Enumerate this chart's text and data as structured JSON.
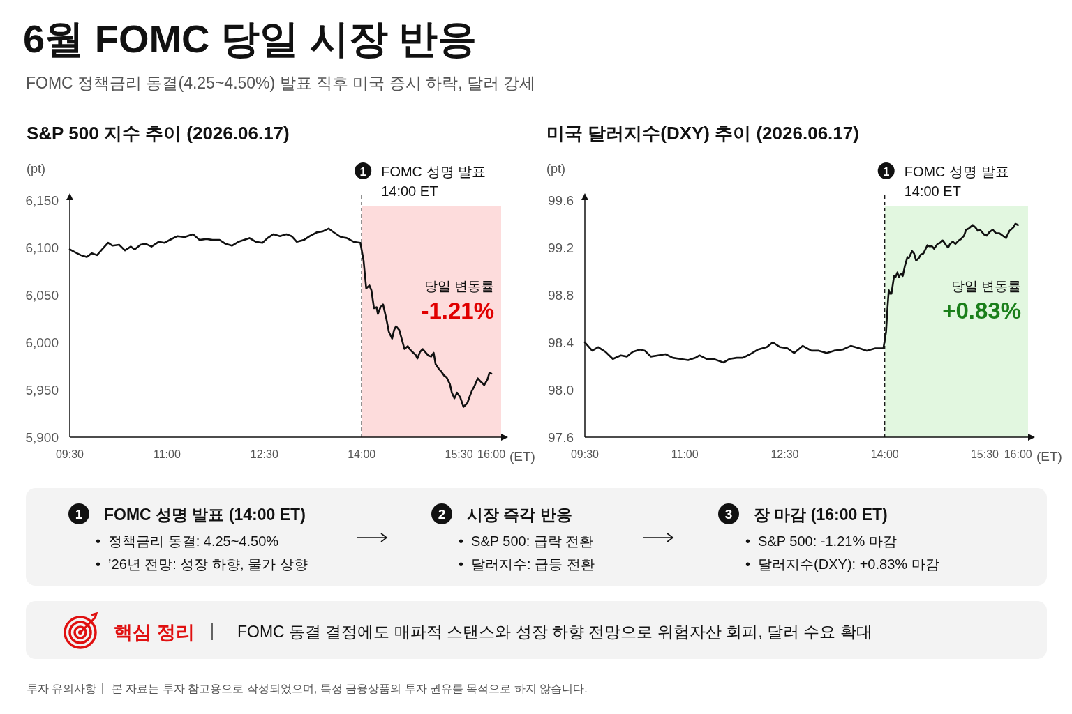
{
  "chart_data": [
    {
      "type": "line",
      "title": "S&P 500 지수 추이 (2026.06.17)",
      "ylabel": "(pt)",
      "xlabel": "(ET)",
      "x": [
        9.5,
        9.61,
        9.67,
        9.76,
        9.84,
        9.92,
        10.01,
        10.09,
        10.16,
        10.26,
        10.35,
        10.44,
        10.5,
        10.59,
        10.67,
        10.76,
        10.87,
        10.96,
        11.07,
        11.16,
        11.27,
        11.4,
        11.5,
        11.61,
        11.7,
        11.81,
        11.9,
        12.0,
        12.1,
        12.27,
        12.37,
        12.47,
        12.55,
        12.64,
        12.74,
        12.84,
        12.92,
        13.0,
        13.11,
        13.2,
        13.31,
        13.4,
        13.49,
        13.57,
        13.68,
        13.77,
        13.88,
        13.98,
        14.03,
        14.07,
        14.12,
        14.15,
        14.19,
        14.23,
        14.25,
        14.29,
        14.33,
        14.38,
        14.42,
        14.47,
        14.5,
        14.53,
        14.58,
        14.62,
        14.66,
        14.71,
        14.74,
        14.78,
        14.83,
        14.86,
        14.9,
        14.94,
        14.99,
        15.03,
        15.07,
        15.11,
        15.14,
        15.19,
        15.23,
        15.27,
        15.31,
        15.36,
        15.39,
        15.43,
        15.47,
        15.52,
        15.57,
        15.63,
        15.66,
        15.7,
        15.74,
        15.79,
        15.83,
        15.89,
        15.94,
        15.97,
        16.0
      ],
      "series": [
        {
          "color": "#111111",
          "values": [
            6098,
            6094,
            6092,
            6090,
            6094,
            6092,
            6099,
            6105,
            6102,
            6103,
            6097,
            6101,
            6098,
            6103,
            6104,
            6101,
            6106,
            6105,
            6109,
            6112,
            6111,
            6114,
            6108,
            6109,
            6108,
            6108,
            6104,
            6102,
            6106,
            6110,
            6106,
            6105,
            6110,
            6114,
            6112,
            6114,
            6112,
            6106,
            6108,
            6112,
            6116,
            6117,
            6120,
            6116,
            6111,
            6110,
            6106,
            6105,
            6086,
            6057,
            6060,
            6055,
            6036,
            6037,
            6030,
            6037,
            6040,
            6025,
            6011,
            6004,
            6013,
            6017,
            6013,
            6003,
            5993,
            5996,
            5993,
            5990,
            5987,
            5983,
            5990,
            5993,
            5989,
            5986,
            5985,
            5989,
            5977,
            5972,
            5969,
            5965,
            5963,
            5956,
            5947,
            5941,
            5947,
            5942,
            5932,
            5936,
            5942,
            5949,
            5954,
            5962,
            5959,
            5955,
            5961,
            5968,
            5967
          ]
        }
      ],
      "xlim": [
        9.5,
        16.15
      ],
      "ylim": [
        5900,
        6150
      ],
      "xticks": [
        {
          "value": 9.5,
          "label": "09:30"
        },
        {
          "value": 11,
          "label": "11:00"
        },
        {
          "value": 12.5,
          "label": "12:30"
        },
        {
          "value": 14,
          "label": "14:00"
        },
        {
          "value": 15.5,
          "label": "15:30"
        },
        {
          "value": 16,
          "label": "16:00"
        }
      ],
      "yticks": [
        {
          "value": 5900,
          "label": "5,900"
        },
        {
          "value": 5950,
          "label": "5,950"
        },
        {
          "value": 6000,
          "label": "6,000"
        },
        {
          "value": 6050,
          "label": "6,050"
        },
        {
          "value": 6100,
          "label": "6,100"
        },
        {
          "value": 6150,
          "label": "6,150"
        }
      ],
      "ref_lines": [
        {
          "axis": "x",
          "value": 14,
          "label": "FOMC 성명 발표\n14:00 ET",
          "line_style": "dashed",
          "color": "#111111"
        }
      ],
      "bands": [
        {
          "axis": "x",
          "from": 14,
          "to": 16.15,
          "color": "#fddcdc"
        }
      ],
      "annotations": [
        "1",
        "당일 변동률",
        "-1.21%"
      ]
    },
    {
      "type": "line",
      "title": "미국 달러지수(DXY) 추이 (2026.06.17)",
      "ylabel": "(pt)",
      "xlabel": "(ET)",
      "x": [
        9.5,
        9.61,
        9.7,
        9.81,
        9.92,
        10.04,
        10.13,
        10.22,
        10.33,
        10.4,
        10.49,
        10.6,
        10.71,
        10.82,
        10.93,
        11.05,
        11.16,
        11.22,
        11.33,
        11.43,
        11.58,
        11.67,
        11.78,
        11.87,
        11.98,
        12.1,
        12.23,
        12.32,
        12.43,
        12.54,
        12.64,
        12.77,
        12.9,
        13.01,
        13.13,
        13.24,
        13.37,
        13.49,
        13.62,
        13.73,
        13.86,
        13.98,
        14.02,
        14.04,
        14.06,
        14.08,
        14.1,
        14.14,
        14.16,
        14.19,
        14.21,
        14.24,
        14.27,
        14.3,
        14.34,
        14.36,
        14.41,
        14.44,
        14.47,
        14.51,
        14.54,
        14.58,
        14.64,
        14.67,
        14.71,
        14.74,
        14.79,
        14.83,
        14.87,
        14.92,
        14.95,
        14.98,
        15.02,
        15.06,
        15.11,
        15.14,
        15.19,
        15.22,
        15.26,
        15.32,
        15.36,
        15.4,
        15.43,
        15.49,
        15.53,
        15.57,
        15.62,
        15.67,
        15.72,
        15.77,
        15.82,
        15.87,
        15.93,
        15.96,
        16.0
      ],
      "series": [
        {
          "color": "#111111",
          "values": [
            98.4,
            98.33,
            98.36,
            98.32,
            98.26,
            98.29,
            98.28,
            98.32,
            98.34,
            98.33,
            98.28,
            98.29,
            98.3,
            98.27,
            98.26,
            98.25,
            98.27,
            98.29,
            98.26,
            98.26,
            98.23,
            98.26,
            98.27,
            98.27,
            98.3,
            98.34,
            98.36,
            98.4,
            98.36,
            98.35,
            98.31,
            98.37,
            98.33,
            98.33,
            98.31,
            98.33,
            98.34,
            98.37,
            98.35,
            98.33,
            98.35,
            98.35,
            98.49,
            98.68,
            98.84,
            98.81,
            98.81,
            98.96,
            98.95,
            98.99,
            98.95,
            98.98,
            98.96,
            99.04,
            99.12,
            99.11,
            99.17,
            99.15,
            99.09,
            99.11,
            99.14,
            99.15,
            99.22,
            99.21,
            99.21,
            99.19,
            99.23,
            99.24,
            99.26,
            99.22,
            99.2,
            99.23,
            99.25,
            99.23,
            99.26,
            99.27,
            99.3,
            99.35,
            99.36,
            99.39,
            99.37,
            99.34,
            99.35,
            99.31,
            99.3,
            99.33,
            99.35,
            99.32,
            99.32,
            99.3,
            99.28,
            99.34,
            99.37,
            99.4,
            99.39
          ]
        }
      ],
      "xlim": [
        9.5,
        16.15
      ],
      "ylim": [
        97.6,
        99.6
      ],
      "xticks": [
        {
          "value": 9.5,
          "label": "09:30"
        },
        {
          "value": 11,
          "label": "11:00"
        },
        {
          "value": 12.5,
          "label": "12:30"
        },
        {
          "value": 14,
          "label": "14:00"
        },
        {
          "value": 15.5,
          "label": "15:30"
        },
        {
          "value": 16,
          "label": "16:00"
        }
      ],
      "yticks": [
        {
          "value": 97.6,
          "label": "97.6"
        },
        {
          "value": 98.0,
          "label": "98.0"
        },
        {
          "value": 98.4,
          "label": "98.4"
        },
        {
          "value": 98.8,
          "label": "98.8"
        },
        {
          "value": 99.2,
          "label": "99.2"
        },
        {
          "value": 99.6,
          "label": "99.6"
        }
      ],
      "ref_lines": [
        {
          "axis": "x",
          "value": 14,
          "label": "FOMC 성명 발표\n14:00 ET",
          "line_style": "dashed",
          "color": "#111111"
        }
      ],
      "bands": [
        {
          "axis": "x",
          "from": 14,
          "to": 16.15,
          "color": "#e2f7e0"
        }
      ],
      "annotations": [
        "1",
        "당일 변동률",
        "+0.83%"
      ]
    },
    {
      "type": "other",
      "title": "6월 FOMC 당일 시장 반응",
      "subtitle": "FOMC 정책금리 동결(4.25~4.50%) 발표 직후 미국 증시 하락, 달러 강세",
      "annotations": [
        "1",
        "FOMC 성명 발표 (14:00 ET)",
        "•  정책금리 동결: 4.25~4.50%",
        "•  ’26년 전망: 성장 하향, 물가 상향",
        "2",
        "시장 즉각 반응",
        "•  S&P 500: 급락 전환",
        "•  달러지수: 급등 전환",
        "3",
        "장 마감 (16:00 ET)",
        "•  S&P 500: -1.21% 마감",
        "•  달러지수(DXY): +0.83% 마감",
        "핵심 정리",
        "FOMC 동결 결정에도 매파적 스탠스와 성장 하향 전망으로 위험자산 회피, 달러 수요 확대",
        "투자 유의사항",
        "본 자료는 투자 참고용으로 작성되었으며, 특정 금융상품의 투자 권유를 목적으로 하지 않습니다."
      ]
    }
  ]
}
